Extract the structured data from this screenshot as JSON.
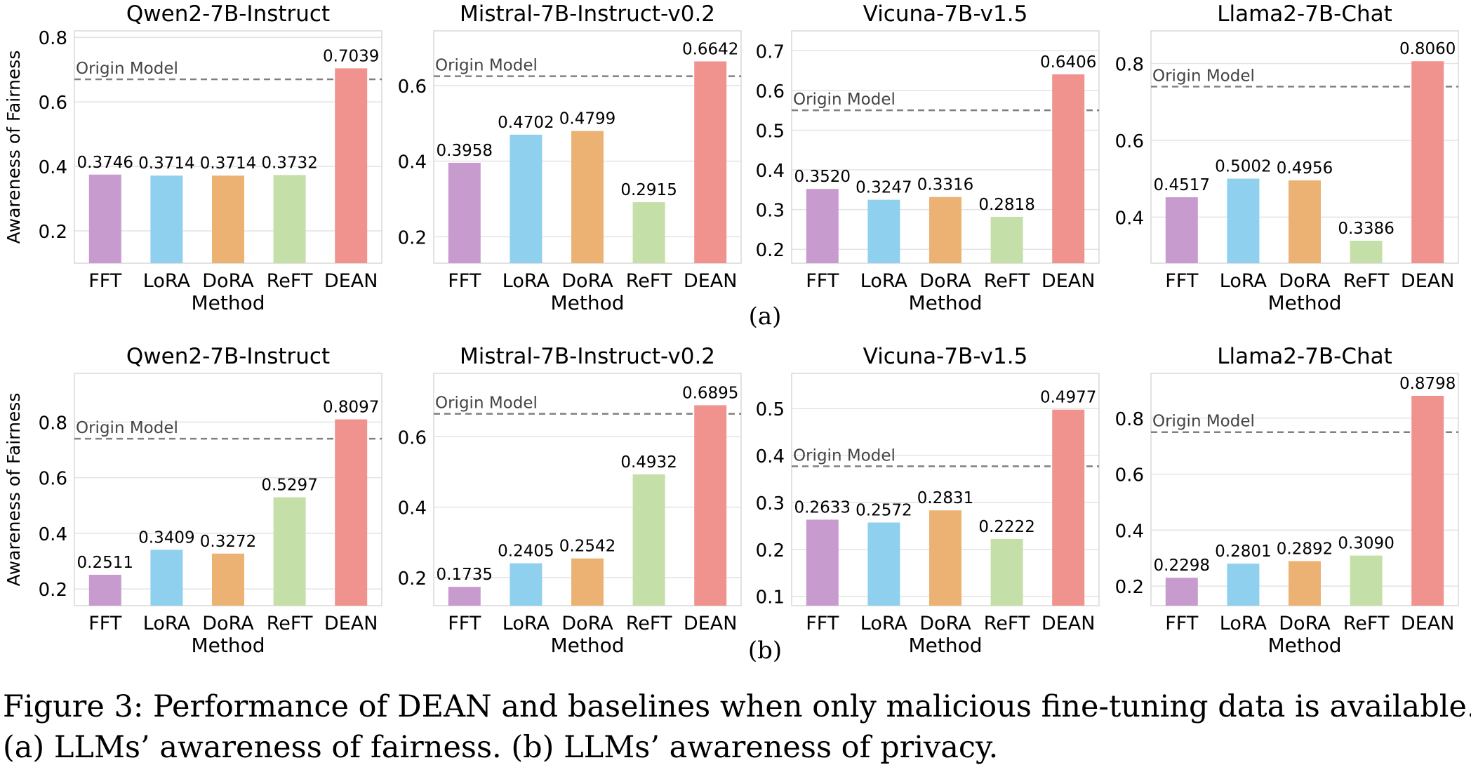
{
  "figure": {
    "caption_line1": "Figure 3: Performance of DEAN and baselines when only malicious fine-tuning data is available.",
    "caption_line2": "(a) LLMs’ awareness of fairness. (b) LLMs’ awareness of privacy.",
    "panel_labels": [
      "(a)",
      "(b)"
    ],
    "origin_label": "Origin Model"
  },
  "colors": {
    "bars": [
      "#c89bcf",
      "#8fd0ef",
      "#ecb273",
      "#c5dfa8",
      "#f0928d"
    ],
    "grid": "#e3e3e3",
    "axis_frame": "#d8d8d8",
    "origin_line": "#808080",
    "text": "#000000"
  },
  "chart_data": [
    {
      "type": "bar",
      "row": 0,
      "col": 0,
      "title": "Qwen2-7B-Instruct",
      "xlabel": "Method",
      "ylabel": "Awareness of Fairness",
      "categories": [
        "FFT",
        "LoRA",
        "DoRA",
        "ReFT",
        "DEAN"
      ],
      "values": [
        0.3746,
        0.3714,
        0.3714,
        0.3732,
        0.7039
      ],
      "value_labels": [
        "0.3746",
        "0.3714",
        "0.3714",
        "0.3732",
        "0.7039"
      ],
      "origin_model": 0.67,
      "ylim": [
        0.1,
        0.82
      ],
      "yticks": [
        0.2,
        0.4,
        0.6,
        0.8
      ],
      "ytick_labels": [
        "0.2",
        "0.4",
        "0.6",
        "0.8"
      ],
      "grid": true
    },
    {
      "type": "bar",
      "row": 0,
      "col": 1,
      "title": "Mistral-7B-Instruct-v0.2",
      "xlabel": "Method",
      "ylabel": "",
      "categories": [
        "FFT",
        "LoRA",
        "DoRA",
        "ReFT",
        "DEAN"
      ],
      "values": [
        0.3958,
        0.4702,
        0.4799,
        0.2915,
        0.6642
      ],
      "value_labels": [
        "0.3958",
        "0.4702",
        "0.4799",
        "0.2915",
        "0.6642"
      ],
      "origin_model": 0.625,
      "ylim": [
        0.13,
        0.745
      ],
      "yticks": [
        0.2,
        0.4,
        0.6
      ],
      "ytick_labels": [
        "0.2",
        "0.4",
        "0.6"
      ],
      "grid": true
    },
    {
      "type": "bar",
      "row": 0,
      "col": 2,
      "title": "Vicuna-7B-v1.5",
      "xlabel": "Method",
      "ylabel": "",
      "categories": [
        "FFT",
        "LoRA",
        "DoRA",
        "ReFT",
        "DEAN"
      ],
      "values": [
        0.352,
        0.3247,
        0.3316,
        0.2818,
        0.6406
      ],
      "value_labels": [
        "0.3520",
        "0.3247",
        "0.3316",
        "0.2818",
        "0.6406"
      ],
      "origin_model": 0.55,
      "ylim": [
        0.165,
        0.75
      ],
      "yticks": [
        0.2,
        0.3,
        0.4,
        0.5,
        0.6,
        0.7
      ],
      "ytick_labels": [
        "0.2",
        "0.3",
        "0.4",
        "0.5",
        "0.6",
        "0.7"
      ],
      "grid": true
    },
    {
      "type": "bar",
      "row": 0,
      "col": 3,
      "title": "Llama2-7B-Chat",
      "xlabel": "Method",
      "ylabel": "",
      "categories": [
        "FFT",
        "LoRA",
        "DoRA",
        "ReFT",
        "DEAN"
      ],
      "values": [
        0.4517,
        0.5002,
        0.4956,
        0.3386,
        0.806
      ],
      "value_labels": [
        "0.4517",
        "0.5002",
        "0.4956",
        "0.3386",
        "0.8060"
      ],
      "origin_model": 0.74,
      "ylim": [
        0.28,
        0.885
      ],
      "yticks": [
        0.4,
        0.6,
        0.8
      ],
      "ytick_labels": [
        "0.4",
        "0.6",
        "0.8"
      ],
      "grid": true
    },
    {
      "type": "bar",
      "row": 1,
      "col": 0,
      "title": "Qwen2-7B-Instruct",
      "xlabel": "Method",
      "ylabel": "Awareness of Fairness",
      "categories": [
        "FFT",
        "LoRA",
        "DoRA",
        "ReFT",
        "DEAN"
      ],
      "values": [
        0.2511,
        0.3409,
        0.3272,
        0.5297,
        0.8097
      ],
      "value_labels": [
        "0.2511",
        "0.3409",
        "0.3272",
        "0.5297",
        "0.8097"
      ],
      "origin_model": 0.74,
      "ylim": [
        0.14,
        0.975
      ],
      "yticks": [
        0.2,
        0.4,
        0.6,
        0.8
      ],
      "ytick_labels": [
        "0.2",
        "0.4",
        "0.6",
        "0.8"
      ],
      "grid": true
    },
    {
      "type": "bar",
      "row": 1,
      "col": 1,
      "title": "Mistral-7B-Instruct-v0.2",
      "xlabel": "Method",
      "ylabel": "",
      "categories": [
        "FFT",
        "LoRA",
        "DoRA",
        "ReFT",
        "DEAN"
      ],
      "values": [
        0.1735,
        0.2405,
        0.2542,
        0.4932,
        0.6895
      ],
      "value_labels": [
        "0.1735",
        "0.2405",
        "0.2542",
        "0.4932",
        "0.6895"
      ],
      "origin_model": 0.665,
      "ylim": [
        0.12,
        0.78
      ],
      "yticks": [
        0.2,
        0.4,
        0.6
      ],
      "ytick_labels": [
        "0.2",
        "0.4",
        "0.6"
      ],
      "grid": true
    },
    {
      "type": "bar",
      "row": 1,
      "col": 2,
      "title": "Vicuna-7B-v1.5",
      "xlabel": "Method",
      "ylabel": "",
      "categories": [
        "FFT",
        "LoRA",
        "DoRA",
        "ReFT",
        "DEAN"
      ],
      "values": [
        0.2633,
        0.2572,
        0.2831,
        0.2222,
        0.4977
      ],
      "value_labels": [
        "0.2633",
        "0.2572",
        "0.2831",
        "0.2222",
        "0.4977"
      ],
      "origin_model": 0.377,
      "ylim": [
        0.08,
        0.575
      ],
      "yticks": [
        0.1,
        0.2,
        0.3,
        0.4,
        0.5
      ],
      "ytick_labels": [
        "0.1",
        "0.2",
        "0.3",
        "0.4",
        "0.5"
      ],
      "grid": true
    },
    {
      "type": "bar",
      "row": 1,
      "col": 3,
      "title": "Llama2-7B-Chat",
      "xlabel": "Method",
      "ylabel": "",
      "categories": [
        "FFT",
        "LoRA",
        "DoRA",
        "ReFT",
        "DEAN"
      ],
      "values": [
        0.2298,
        0.2801,
        0.2892,
        0.309,
        0.8798
      ],
      "value_labels": [
        "0.2298",
        "0.2801",
        "0.2892",
        "0.3090",
        "0.8798"
      ],
      "origin_model": 0.75,
      "ylim": [
        0.13,
        0.96
      ],
      "yticks": [
        0.2,
        0.4,
        0.6,
        0.8
      ],
      "ytick_labels": [
        "0.2",
        "0.4",
        "0.6",
        "0.8"
      ],
      "grid": true
    }
  ]
}
